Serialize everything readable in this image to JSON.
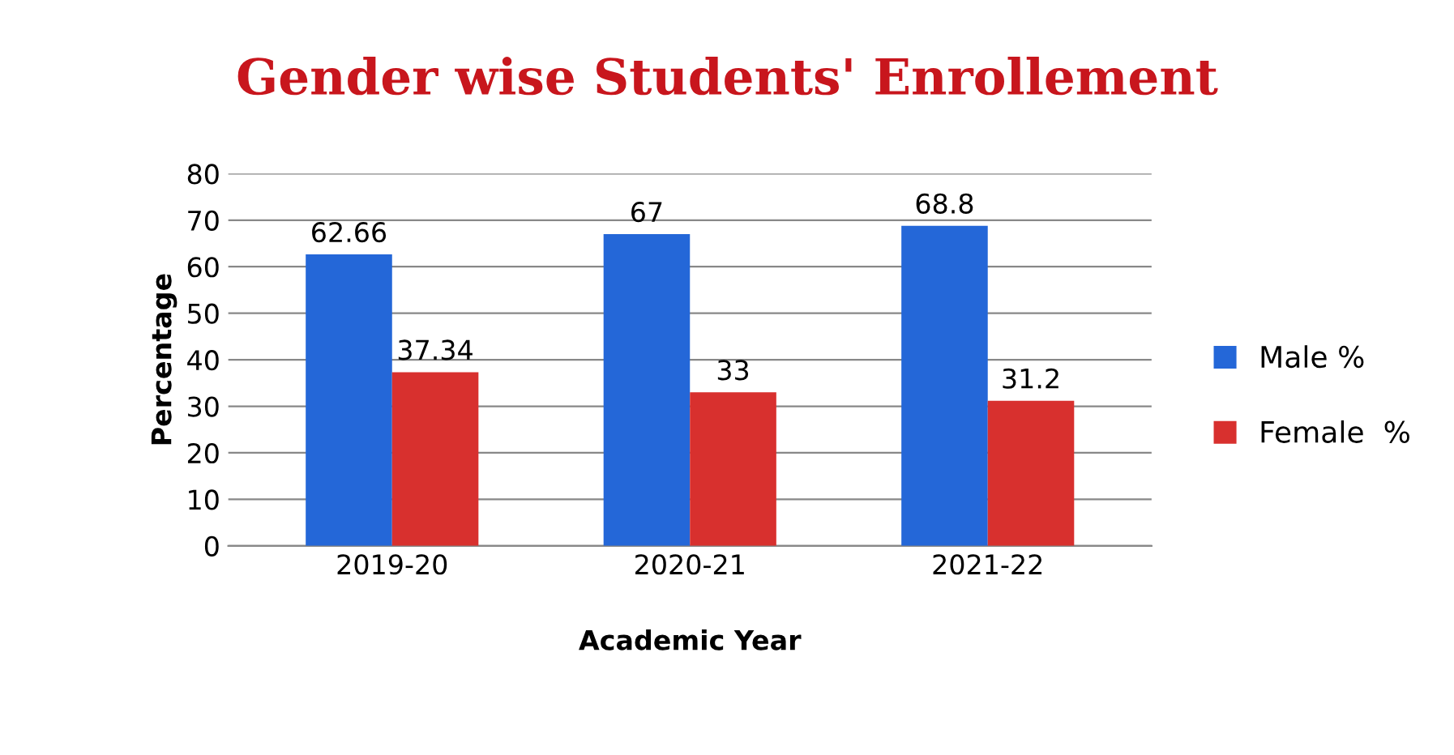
{
  "chart_data": {
    "type": "bar",
    "title": "Gender wise Students' Enrollement",
    "xlabel": "Academic Year",
    "ylabel": "Percentage",
    "categories": [
      "2019-20",
      "2020-21",
      "2021-22"
    ],
    "series": [
      {
        "name": "Male %",
        "color": "#2467d8",
        "values": [
          62.66,
          67,
          68.8
        ]
      },
      {
        "name": "Female  %",
        "color": "#d8302e",
        "values": [
          37.34,
          33,
          31.2
        ]
      }
    ],
    "ylim": [
      0,
      80
    ],
    "yticks": [
      0,
      10,
      20,
      30,
      40,
      50,
      60,
      70,
      80
    ],
    "grid": "y",
    "legend": "right",
    "data_labels": true
  }
}
